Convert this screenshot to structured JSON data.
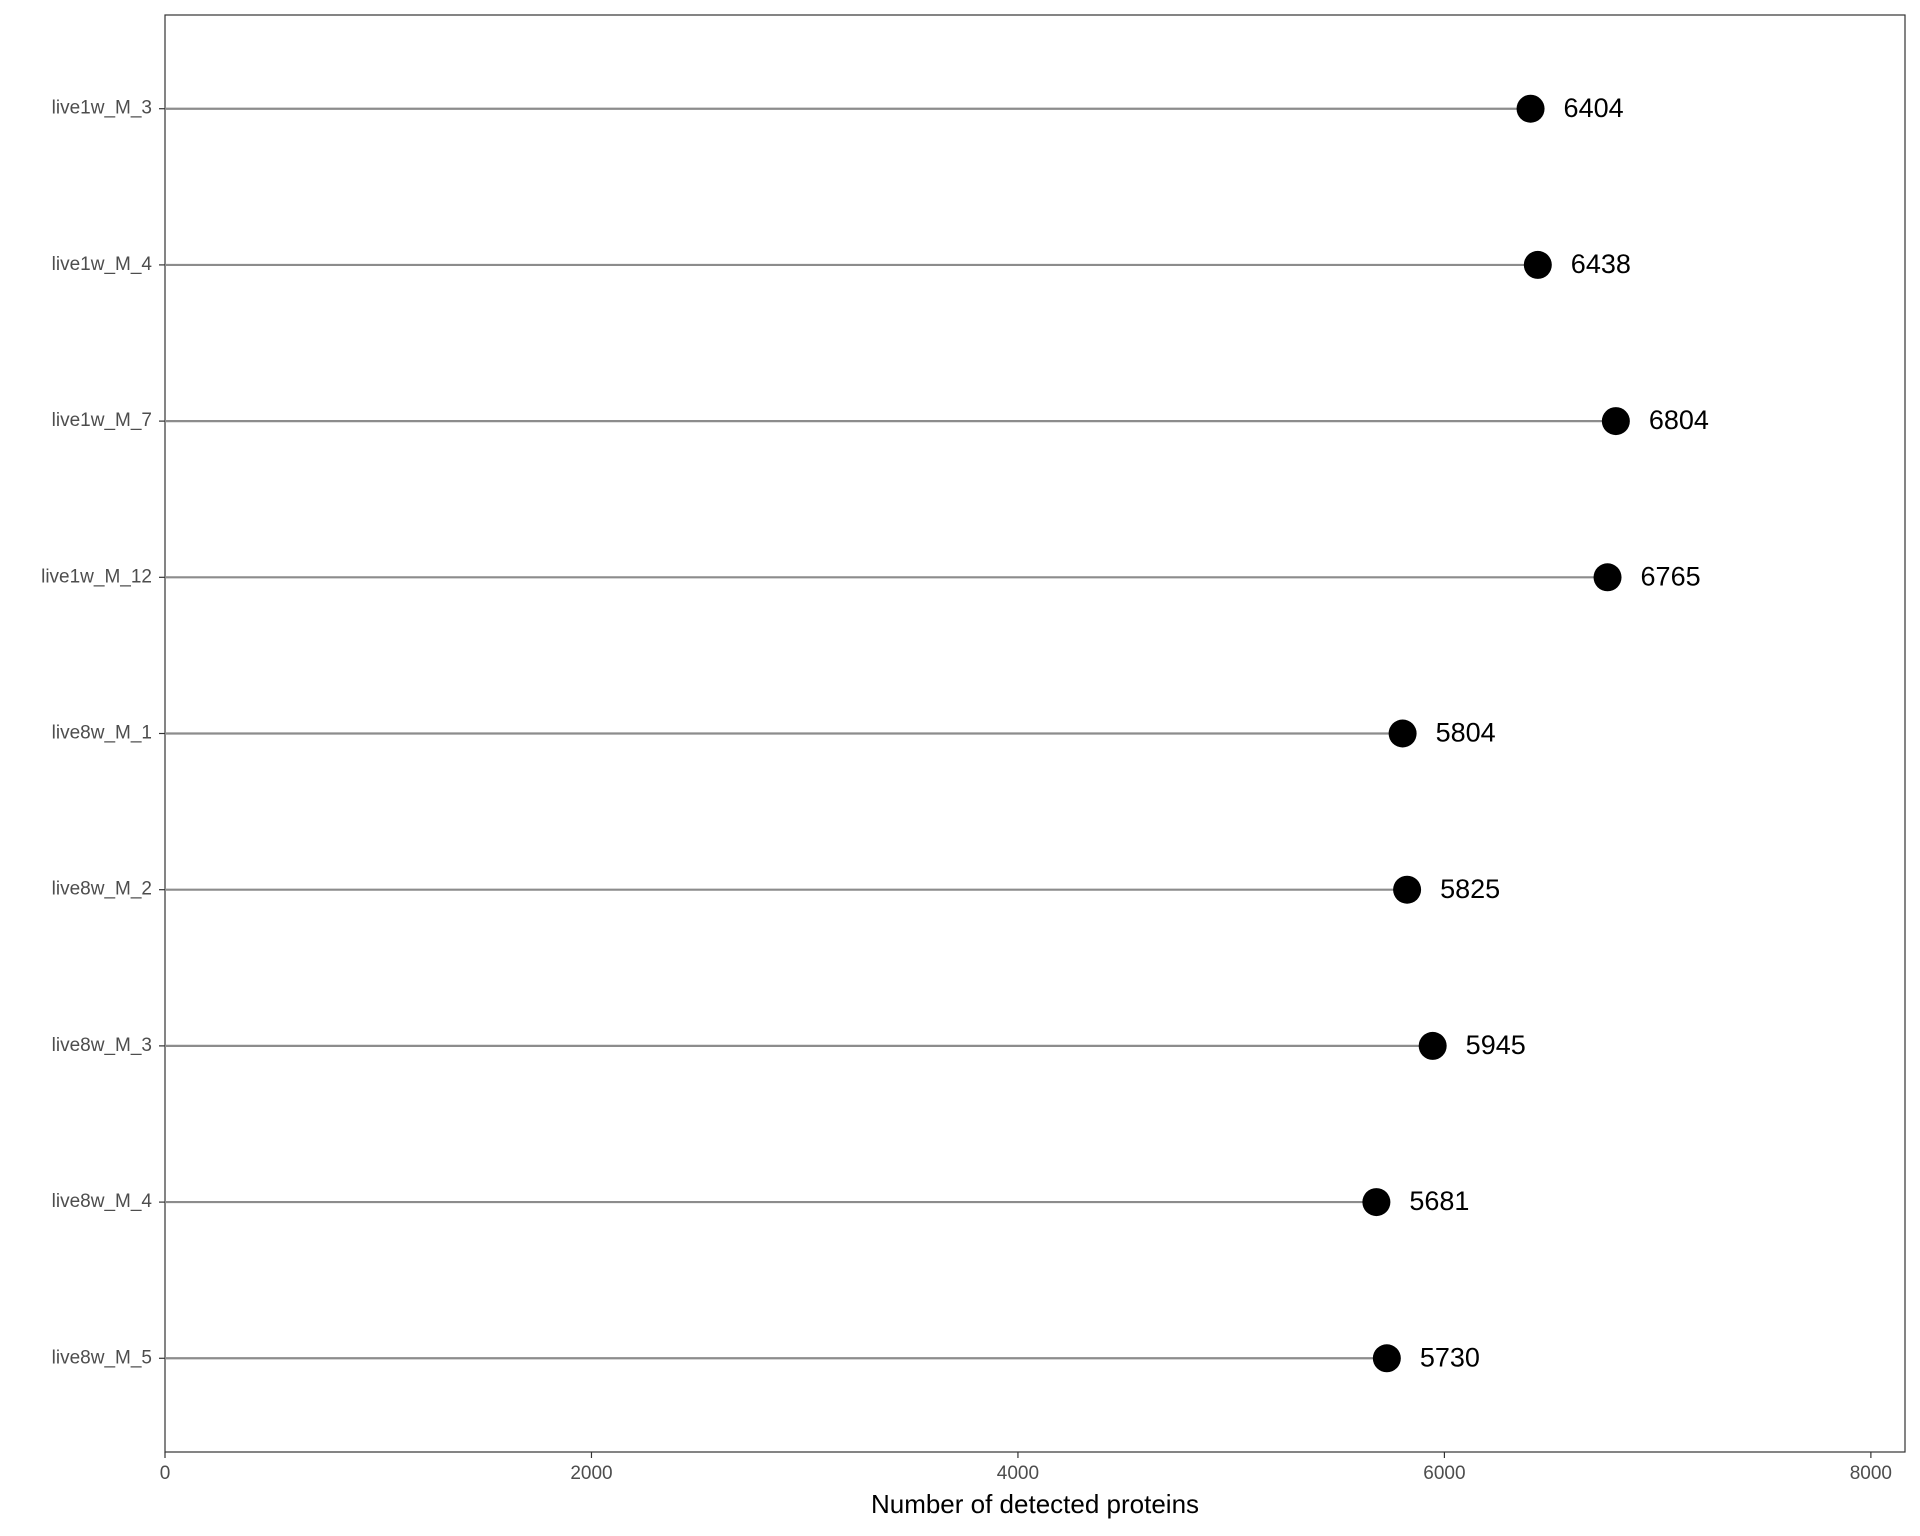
{
  "chart_data": {
    "type": "lollipop",
    "x_label": "Number of detected proteins",
    "categories": [
      "live1w_M_3",
      "live1w_M_4",
      "live1w_M_7",
      "live1w_M_12",
      "live8w_M_1",
      "live8w_M_2",
      "live8w_M_3",
      "live8w_M_4",
      "live8w_M_5"
    ],
    "values": [
      6404,
      6438,
      6804,
      6765,
      5804,
      5825,
      5945,
      5681,
      5730
    ],
    "color": "#000000",
    "stem_color": "#8c8c8c",
    "xlim": [
      0,
      8160
    ],
    "xticks": [
      0,
      2000,
      4000,
      6000,
      8000
    ],
    "grid": false
  }
}
